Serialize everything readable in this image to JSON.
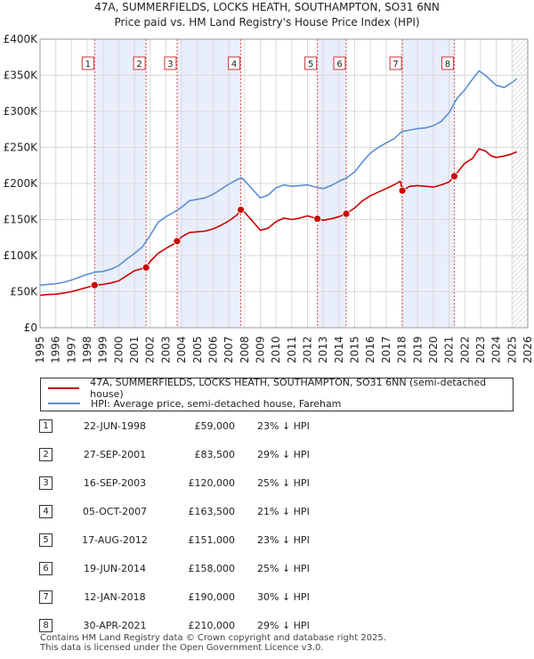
{
  "chart_data": {
    "type": "line",
    "title": "47A, SUMMERFIELDS, LOCKS HEATH, SOUTHAMPTON, SO31 6NN",
    "subtitle": "Price paid vs. HM Land Registry's House Price Index (HPI)",
    "xlabel": "",
    "ylabel": "",
    "xlim": [
      1995,
      2026
    ],
    "ylim": [
      0,
      400000
    ],
    "y_ticks": [
      0,
      50000,
      100000,
      150000,
      200000,
      250000,
      300000,
      350000,
      400000
    ],
    "y_tick_labels": [
      "£0",
      "£50K",
      "£100K",
      "£150K",
      "£200K",
      "£250K",
      "£300K",
      "£350K",
      "£400K"
    ],
    "x_ticks": [
      1995,
      1996,
      1997,
      1998,
      1999,
      2000,
      2001,
      2002,
      2003,
      2004,
      2005,
      2006,
      2007,
      2008,
      2009,
      2010,
      2011,
      2012,
      2013,
      2014,
      2015,
      2016,
      2017,
      2018,
      2019,
      2020,
      2021,
      2022,
      2023,
      2024,
      2025,
      2026
    ],
    "x_tick_labels": [
      "1995",
      "1996",
      "1997",
      "1998",
      "1999",
      "2000",
      "2001",
      "2002",
      "2003",
      "2004",
      "2005",
      "2006",
      "2007",
      "2008",
      "2009",
      "2010",
      "2011",
      "2012",
      "2013",
      "2014",
      "2015",
      "2016",
      "2017",
      "2018",
      "2019",
      "2020",
      "2021",
      "2022",
      "2023",
      "2024",
      "2025",
      "2026"
    ],
    "grid": true,
    "shaded_periods": [
      [
        1998.47,
        2001.74
      ],
      [
        2003.71,
        2007.76
      ],
      [
        2012.63,
        2014.46
      ],
      [
        2018.03,
        2021.33
      ]
    ],
    "projection_start": 2025.0,
    "series": [
      {
        "name": "47A, SUMMERFIELDS, LOCKS HEATH, SOUTHAMPTON, SO31 6NN (semi-detached house)",
        "color": "#cc0000",
        "x": [
          1995.0,
          1995.5,
          1996.0,
          1996.5,
          1997.0,
          1997.5,
          1998.0,
          1998.47,
          1999.0,
          1999.5,
          2000.0,
          2000.5,
          2001.0,
          2001.5,
          2001.74,
          2002.0,
          2002.5,
          2003.0,
          2003.5,
          2003.71,
          2004.0,
          2004.5,
          2005.0,
          2005.5,
          2006.0,
          2006.5,
          2007.0,
          2007.5,
          2007.76,
          2008.0,
          2008.5,
          2009.0,
          2009.5,
          2010.0,
          2010.5,
          2011.0,
          2011.5,
          2012.0,
          2012.63,
          2013.0,
          2013.5,
          2014.0,
          2014.46,
          2015.0,
          2015.5,
          2016.0,
          2016.5,
          2017.0,
          2017.5,
          2017.9,
          2018.03,
          2018.5,
          2019.0,
          2019.5,
          2020.0,
          2020.5,
          2021.0,
          2021.33,
          2021.7,
          2022.0,
          2022.5,
          2022.9,
          2023.3,
          2023.7,
          2024.0,
          2024.5,
          2025.0,
          2025.3
        ],
        "values": [
          45000,
          46000,
          46500,
          48000,
          50000,
          53000,
          56000,
          59000,
          60000,
          62000,
          65000,
          72000,
          79000,
          82000,
          83500,
          92000,
          103000,
          110000,
          116000,
          120000,
          126000,
          132000,
          133000,
          134000,
          137000,
          142000,
          148000,
          156000,
          163500,
          160000,
          148000,
          135000,
          138000,
          147000,
          152000,
          150000,
          152000,
          155000,
          151000,
          149000,
          151000,
          154000,
          158000,
          166000,
          176000,
          183000,
          188000,
          193000,
          198000,
          203000,
          190000,
          196000,
          197000,
          196000,
          195000,
          198000,
          202000,
          210000,
          220000,
          228000,
          235000,
          248000,
          245000,
          238000,
          236000,
          238000,
          241000,
          244000
        ]
      },
      {
        "name": "HPI: Average price, semi-detached house, Fareham",
        "color": "#5b8fd0",
        "x": [
          1995.0,
          1995.5,
          1996.0,
          1996.5,
          1997.0,
          1997.5,
          1998.0,
          1998.5,
          1999.0,
          1999.5,
          2000.0,
          2000.5,
          2001.0,
          2001.5,
          2002.0,
          2002.5,
          2003.0,
          2003.5,
          2004.0,
          2004.5,
          2005.0,
          2005.5,
          2006.0,
          2006.5,
          2007.0,
          2007.5,
          2007.8,
          2008.0,
          2008.5,
          2009.0,
          2009.5,
          2010.0,
          2010.5,
          2011.0,
          2011.5,
          2012.0,
          2012.5,
          2013.0,
          2013.5,
          2014.0,
          2014.5,
          2015.0,
          2015.5,
          2016.0,
          2016.5,
          2017.0,
          2017.5,
          2018.0,
          2018.5,
          2019.0,
          2019.5,
          2020.0,
          2020.5,
          2021.0,
          2021.5,
          2022.0,
          2022.5,
          2022.9,
          2023.3,
          2023.7,
          2024.0,
          2024.5,
          2025.0,
          2025.3
        ],
        "values": [
          59000,
          60000,
          61000,
          63000,
          66000,
          70000,
          74000,
          77000,
          78000,
          81000,
          86000,
          95000,
          103000,
          112000,
          128000,
          146000,
          154000,
          160000,
          167000,
          176000,
          178000,
          180000,
          185000,
          192000,
          199000,
          205000,
          208000,
          204000,
          192000,
          180000,
          184000,
          194000,
          198000,
          196000,
          197000,
          198000,
          195000,
          193000,
          197000,
          203000,
          208000,
          216000,
          230000,
          242000,
          250000,
          256000,
          262000,
          272000,
          274000,
          276000,
          277000,
          280000,
          286000,
          298000,
          318000,
          330000,
          345000,
          356000,
          350000,
          342000,
          336000,
          333000,
          340000,
          345000
        ]
      }
    ],
    "sales": [
      {
        "label": "1",
        "x": 1998.47,
        "value": 59000
      },
      {
        "label": "2",
        "x": 2001.74,
        "value": 83500
      },
      {
        "label": "3",
        "x": 2003.71,
        "value": 120000
      },
      {
        "label": "4",
        "x": 2007.76,
        "value": 163500
      },
      {
        "label": "5",
        "x": 2012.63,
        "value": 151000
      },
      {
        "label": "6",
        "x": 2014.46,
        "value": 158000
      },
      {
        "label": "7",
        "x": 2018.03,
        "value": 190000
      },
      {
        "label": "8",
        "x": 2021.33,
        "value": 210000
      }
    ]
  },
  "legend": {
    "property_label": "47A, SUMMERFIELDS, LOCKS HEATH, SOUTHAMPTON, SO31 6NN (semi-detached house)",
    "hpi_label": "HPI: Average price, semi-detached house, Fareham"
  },
  "table": [
    {
      "num": "1",
      "date": "22-JUN-1998",
      "price": "£59,000",
      "hpi": "23% ↓ HPI"
    },
    {
      "num": "2",
      "date": "27-SEP-2001",
      "price": "£83,500",
      "hpi": "29% ↓ HPI"
    },
    {
      "num": "3",
      "date": "16-SEP-2003",
      "price": "£120,000",
      "hpi": "25% ↓ HPI"
    },
    {
      "num": "4",
      "date": "05-OCT-2007",
      "price": "£163,500",
      "hpi": "21% ↓ HPI"
    },
    {
      "num": "5",
      "date": "17-AUG-2012",
      "price": "£151,000",
      "hpi": "23% ↓ HPI"
    },
    {
      "num": "6",
      "date": "19-JUN-2014",
      "price": "£158,000",
      "hpi": "25% ↓ HPI"
    },
    {
      "num": "7",
      "date": "12-JAN-2018",
      "price": "£190,000",
      "hpi": "30% ↓ HPI"
    },
    {
      "num": "8",
      "date": "30-APR-2021",
      "price": "£210,000",
      "hpi": "29% ↓ HPI"
    }
  ],
  "footer": {
    "line1": "Contains HM Land Registry data © Crown copyright and database right 2025.",
    "line2": "This data is licensed under the Open Government Licence v3.0."
  }
}
